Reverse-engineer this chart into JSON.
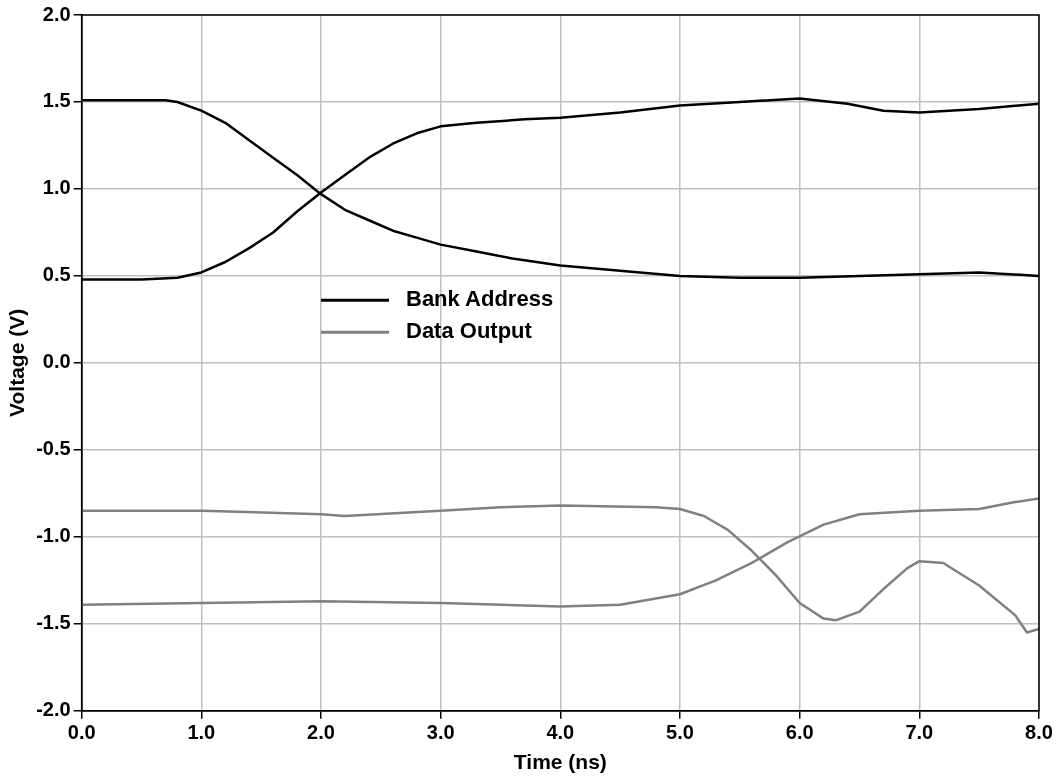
{
  "chart_data": {
    "type": "line",
    "xlabel": "Time (ns)",
    "ylabel": "Voltage (V)",
    "xlim": [
      0,
      8
    ],
    "xticks": [
      {
        "value": 0,
        "label": "0.0"
      },
      {
        "value": 1,
        "label": "1.0"
      },
      {
        "value": 2,
        "label": "2.0"
      },
      {
        "value": 3,
        "label": "3.0"
      },
      {
        "value": 4,
        "label": "4.0"
      },
      {
        "value": 5,
        "label": "5.0"
      },
      {
        "value": 6,
        "label": "6.0"
      },
      {
        "value": 7,
        "label": "7.0"
      },
      {
        "value": 8,
        "label": "8.0"
      }
    ],
    "ylim": [
      -2,
      2
    ],
    "yticks": [
      {
        "value": -2,
        "label": "-2.0"
      },
      {
        "value": -1.5,
        "label": "-1.5"
      },
      {
        "value": -1,
        "label": "-1.0"
      },
      {
        "value": -0.5,
        "label": "-0.5"
      },
      {
        "value": 0,
        "label": "0.0"
      },
      {
        "value": 0.5,
        "label": "0.5"
      },
      {
        "value": 1,
        "label": "1.0"
      },
      {
        "value": 1.5,
        "label": "1.5"
      },
      {
        "value": 2,
        "label": "2.0"
      }
    ],
    "grid": true,
    "legend": "center",
    "marker": "none",
    "line_style": "solid",
    "series": [
      {
        "name": "Bank Address",
        "color": "#000000",
        "x": [
          0,
          0.5,
          0.7,
          0.8,
          1.0,
          1.2,
          1.4,
          1.6,
          1.8,
          2.0,
          2.2,
          2.4,
          2.6,
          2.8,
          3.0,
          3.3,
          3.6,
          4.0,
          4.5,
          5.0,
          5.5,
          6.0,
          6.5,
          7.0,
          7.5,
          8.0
        ],
        "values": [
          1.51,
          1.51,
          1.51,
          1.5,
          1.45,
          1.38,
          1.28,
          1.18,
          1.08,
          0.97,
          0.88,
          0.82,
          0.76,
          0.72,
          0.68,
          0.64,
          0.6,
          0.56,
          0.53,
          0.5,
          0.49,
          0.49,
          0.5,
          0.51,
          0.52,
          0.5
        ]
      },
      {
        "color": "#000000",
        "x": [
          0,
          0.5,
          0.8,
          1.0,
          1.2,
          1.4,
          1.6,
          1.8,
          2.0,
          2.2,
          2.4,
          2.6,
          2.8,
          3.0,
          3.3,
          3.7,
          4.0,
          4.5,
          5.0,
          5.5,
          6.0,
          6.4,
          6.7,
          7.0,
          7.5,
          8.0
        ],
        "values": [
          0.48,
          0.48,
          0.49,
          0.52,
          0.58,
          0.66,
          0.75,
          0.87,
          0.98,
          1.08,
          1.18,
          1.26,
          1.32,
          1.36,
          1.38,
          1.4,
          1.41,
          1.44,
          1.48,
          1.5,
          1.52,
          1.49,
          1.45,
          1.44,
          1.46,
          1.49
        ]
      },
      {
        "name": "Data Output",
        "color": "#808080",
        "x": [
          0,
          1,
          2,
          2.2,
          3,
          3.5,
          4,
          4.8,
          5.0,
          5.2,
          5.4,
          5.6,
          5.8,
          6.0,
          6.2,
          6.3,
          6.5,
          6.7,
          6.9,
          7.0,
          7.2,
          7.5,
          7.8,
          7.9,
          8.0
        ],
        "values": [
          -0.85,
          -0.85,
          -0.87,
          -0.88,
          -0.85,
          -0.83,
          -0.82,
          -0.83,
          -0.84,
          -0.88,
          -0.96,
          -1.08,
          -1.22,
          -1.38,
          -1.47,
          -1.48,
          -1.43,
          -1.3,
          -1.18,
          -1.14,
          -1.15,
          -1.28,
          -1.45,
          -1.55,
          -1.53
        ]
      },
      {
        "color": "#808080",
        "x": [
          0,
          1,
          2,
          3,
          4,
          4.5,
          5.0,
          5.3,
          5.6,
          5.9,
          6.2,
          6.5,
          7.0,
          7.5,
          7.8,
          8.0
        ],
        "values": [
          -1.39,
          -1.38,
          -1.37,
          -1.38,
          -1.4,
          -1.39,
          -1.33,
          -1.25,
          -1.15,
          -1.03,
          -0.93,
          -0.87,
          -0.85,
          -0.84,
          -0.8,
          -0.78
        ]
      }
    ]
  }
}
